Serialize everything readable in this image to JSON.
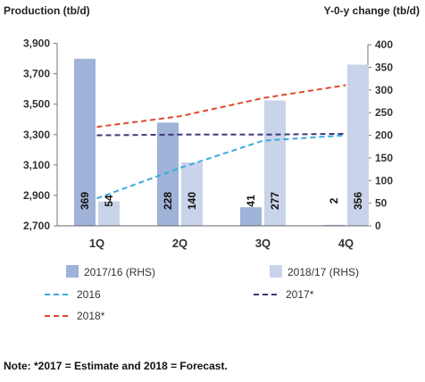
{
  "chart_data": {
    "type": "bar+line",
    "left_axis": {
      "title": "Production (tb/d)",
      "ticks": [
        "2,700",
        "2,900",
        "3,100",
        "3,300",
        "3,500",
        "3,700",
        "3,900"
      ],
      "range": [
        2700,
        3950
      ]
    },
    "right_axis": {
      "title": "Y-0-y change (tb/d)",
      "ticks": [
        "0",
        "50",
        "100",
        "150",
        "200",
        "250",
        "300",
        "350",
        "400"
      ],
      "range": [
        0,
        420
      ]
    },
    "categories": [
      "1Q",
      "2Q",
      "3Q",
      "4Q"
    ],
    "bar_series": [
      {
        "name": "2017/16 (RHS)",
        "color": "#9fb3d9",
        "values": [
          369,
          228,
          41,
          2
        ]
      },
      {
        "name": "2018/17 (RHS)",
        "color": "#c9d4ea",
        "values": [
          54,
          140,
          277,
          356
        ]
      }
    ],
    "line_series": [
      {
        "name": "2016",
        "color": "#3aa9dc",
        "values": [
          2880,
          3080,
          3260,
          3295
        ]
      },
      {
        "name": "2017*",
        "color": "#3a3a7a",
        "values": [
          3295,
          3300,
          3300,
          3305
        ]
      },
      {
        "name": "2018*",
        "color": "#e04a2e",
        "values": [
          3350,
          3420,
          3540,
          3625
        ]
      }
    ],
    "grid": false,
    "legend_position": "bottom"
  },
  "note": "Note: *2017 = Estimate and 2018 = Forecast."
}
